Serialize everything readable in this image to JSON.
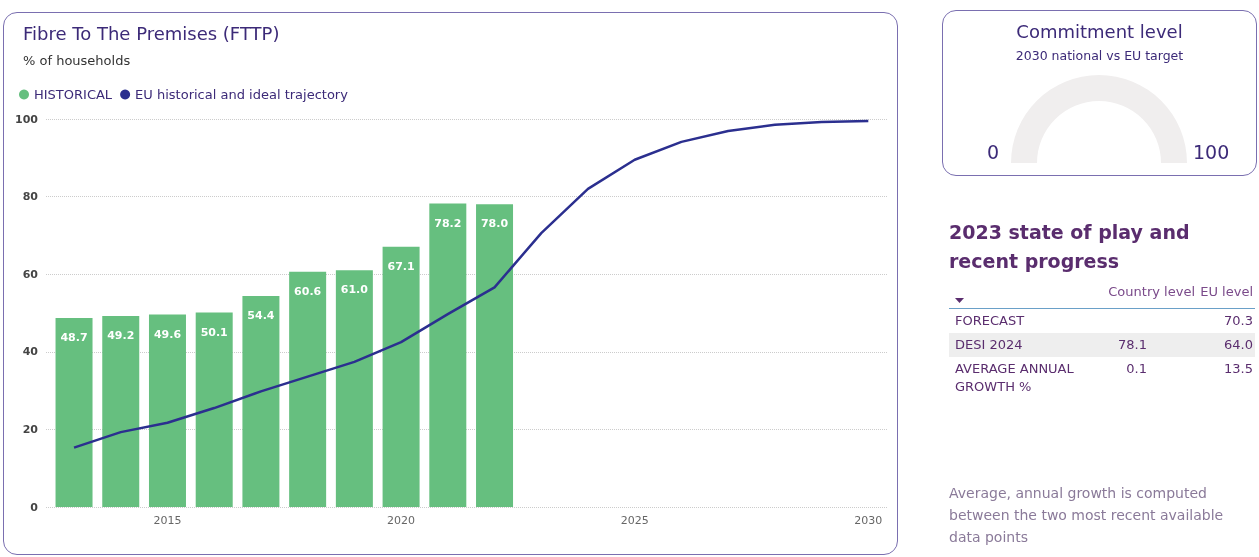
{
  "chart_data": [
    {
      "type": "bar",
      "title": "Fibre To The Premises (FTTP)",
      "subtitle": "% of households",
      "series": [
        {
          "name": "HISTORICAL",
          "type": "bar",
          "color": "#66bf7f",
          "x": [
            2013,
            2014,
            2015,
            2016,
            2017,
            2018,
            2019,
            2020,
            2021,
            2022
          ],
          "values": [
            48.7,
            49.2,
            49.6,
            50.1,
            54.4,
            60.6,
            61.0,
            67.1,
            78.2,
            78.0
          ],
          "value_labels": [
            "48.7",
            "49.2",
            "49.6",
            "50.1",
            "54.4",
            "60.6",
            "61.0",
            "67.1",
            "78.2",
            "78.0"
          ]
        },
        {
          "name": "EU historical and ideal trajectory",
          "type": "line",
          "color": "#2b2f8f",
          "x": [
            2013,
            2014,
            2015,
            2016,
            2017,
            2018,
            2019,
            2020,
            2021,
            2022,
            2023,
            2024,
            2025,
            2026,
            2027,
            2028,
            2029,
            2030
          ],
          "values": [
            15.3,
            19.3,
            21.7,
            25.5,
            29.8,
            33.6,
            37.4,
            42.5,
            49.7,
            56.6,
            70.6,
            82.0,
            89.5,
            94.1,
            96.9,
            98.5,
            99.2,
            99.5
          ]
        }
      ],
      "xlim": [
        2012.4,
        2030.4
      ],
      "xticks": [
        2015,
        2020,
        2025,
        2030
      ],
      "ylim": [
        0,
        100
      ],
      "yticks": [
        0,
        20,
        40,
        60,
        80,
        100
      ],
      "grid": "y",
      "legend": "top left"
    },
    {
      "type": "other",
      "title": "Commitment level",
      "subtitle": "2030 national vs EU target",
      "annotations": [
        "0",
        "100"
      ]
    },
    {
      "type": "other",
      "title": "2023 state of play and recent progress",
      "categories": [
        "FORECAST",
        "DESI 2024",
        "AVERAGE ANNUAL GROWTH %"
      ],
      "series": [
        {
          "name": "Country level",
          "values": [
            null,
            78.1,
            0.1
          ],
          "value_labels": [
            null,
            "78.1",
            "0.1"
          ]
        },
        {
          "name": "EU level",
          "values": [
            70.3,
            64.0,
            13.5
          ],
          "value_labels": [
            "70.3",
            "64.0",
            "13.5"
          ]
        }
      ],
      "annotations": [
        "Average, annual growth is computed between the two most recent available data points"
      ]
    }
  ]
}
